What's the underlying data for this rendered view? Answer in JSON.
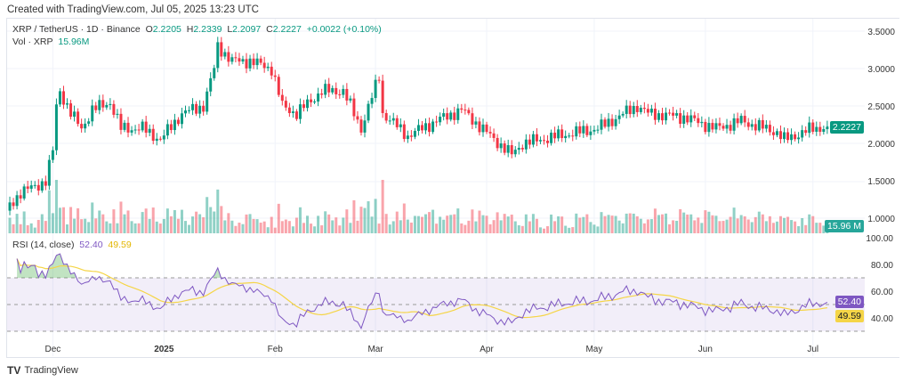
{
  "header": {
    "created": "Created with TradingView.com, Jul 05, 2025 13:23 UTC"
  },
  "legend": {
    "symbol": "XRP / TetherUS · 1D · Binance",
    "o_label": "O",
    "o": "2.2205",
    "h_label": "H",
    "h": "2.2339",
    "l_label": "L",
    "l": "2.2097",
    "c_label": "C",
    "c": "2.2227",
    "change": "+0.0022 (+0.10%)",
    "vol_label": "Vol · XRP",
    "vol": "15.96M"
  },
  "rsi_legend": {
    "label": "RSI (14, close)",
    "rsi": "52.40",
    "ma": "49.59"
  },
  "tags": {
    "price": "2.2227",
    "volume": "15.96 M",
    "rsi": "52.40",
    "ma": "49.59"
  },
  "footer": {
    "brand": "TradingView"
  },
  "colors": {
    "up": "#089981",
    "down": "#f23645",
    "rsi": "#7e57c2",
    "ma": "#f5d547"
  },
  "chart_data": {
    "type": "candlestick",
    "title": "XRP / TetherUS · 1D · Binance",
    "start_date": "2024-11-18",
    "price_axis": [
      "3.5000",
      "3.0000",
      "2.5000",
      "2.0000",
      "1.5000",
      "1.0000"
    ],
    "rsi_axis": [
      "100.00",
      "80.00",
      "60.00",
      "40.00"
    ],
    "x_ticks": [
      {
        "label": "Dec",
        "day": 13
      },
      {
        "label": "2025",
        "day": 44
      },
      {
        "label": "Feb",
        "day": 75
      },
      {
        "label": "Mar",
        "day": 103
      },
      {
        "label": "Apr",
        "day": 134
      },
      {
        "label": "May",
        "day": 164
      },
      {
        "label": "Jun",
        "day": 195
      },
      {
        "label": "Jul",
        "day": 225
      }
    ],
    "close_keypoints": [
      [
        0,
        1.1
      ],
      [
        4,
        1.35
      ],
      [
        8,
        1.42
      ],
      [
        11,
        1.5
      ],
      [
        13,
        1.9
      ],
      [
        14,
        2.5
      ],
      [
        15,
        2.7
      ],
      [
        18,
        2.4
      ],
      [
        21,
        2.2
      ],
      [
        24,
        2.45
      ],
      [
        29,
        2.55
      ],
      [
        32,
        2.2
      ],
      [
        38,
        2.2
      ],
      [
        43,
        2.05
      ],
      [
        49,
        2.4
      ],
      [
        55,
        2.5
      ],
      [
        58,
        3.0
      ],
      [
        59,
        3.3
      ],
      [
        63,
        3.1
      ],
      [
        68,
        3.1
      ],
      [
        74,
        3.0
      ],
      [
        77,
        2.5
      ],
      [
        81,
        2.4
      ],
      [
        88,
        2.7
      ],
      [
        94,
        2.7
      ],
      [
        99,
        2.2
      ],
      [
        104,
        2.9
      ],
      [
        105,
        2.4
      ],
      [
        112,
        2.1
      ],
      [
        120,
        2.3
      ],
      [
        127,
        2.45
      ],
      [
        135,
        2.1
      ],
      [
        141,
        1.85
      ],
      [
        144,
        2.0
      ],
      [
        154,
        2.1
      ],
      [
        165,
        2.2
      ],
      [
        176,
        2.5
      ],
      [
        179,
        2.4
      ],
      [
        189,
        2.35
      ],
      [
        198,
        2.2
      ],
      [
        205,
        2.3
      ],
      [
        215,
        2.15
      ],
      [
        217,
        2.05
      ],
      [
        225,
        2.2
      ],
      [
        229,
        2.2227
      ]
    ],
    "last_close": 2.2227,
    "last_volume_m": 15.96,
    "rsi_period": 14,
    "rsi_ma_period": 14,
    "rsi_bands": [
      70,
      50,
      30
    ]
  }
}
